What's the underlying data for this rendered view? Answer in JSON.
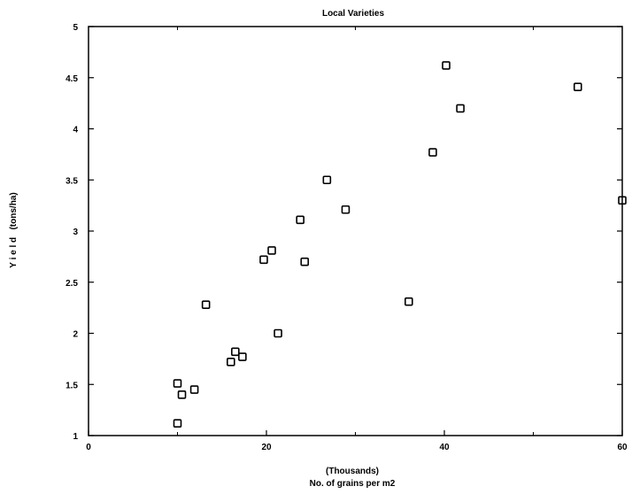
{
  "chart_data": {
    "type": "scatter",
    "title": "Local Varieties",
    "xlabel": "No. of grains per m2",
    "xlabel_unit": "(Thousands)",
    "ylabel": "Y i e l d   (tons/ha)",
    "xlim": [
      0,
      60
    ],
    "ylim": [
      1,
      5
    ],
    "xticks": [
      "0",
      "20",
      "40",
      "60"
    ],
    "yticks": [
      "1",
      "1.5",
      "2",
      "2.5",
      "3",
      "3.5",
      "4",
      "4.5",
      "5"
    ],
    "grid": false,
    "marker": "open-square",
    "series": [
      {
        "points": [
          {
            "x": 10.0,
            "y": 1.51
          },
          {
            "x": 10.0,
            "y": 1.12
          },
          {
            "x": 10.5,
            "y": 1.4
          },
          {
            "x": 11.9,
            "y": 1.45
          },
          {
            "x": 13.2,
            "y": 2.28
          },
          {
            "x": 16.0,
            "y": 1.72
          },
          {
            "x": 16.5,
            "y": 1.82
          },
          {
            "x": 17.3,
            "y": 1.77
          },
          {
            "x": 19.7,
            "y": 2.72
          },
          {
            "x": 20.6,
            "y": 2.81
          },
          {
            "x": 21.3,
            "y": 2.0
          },
          {
            "x": 23.8,
            "y": 3.11
          },
          {
            "x": 24.3,
            "y": 2.7
          },
          {
            "x": 26.8,
            "y": 3.5
          },
          {
            "x": 28.9,
            "y": 3.21
          },
          {
            "x": 36.0,
            "y": 2.31
          },
          {
            "x": 38.7,
            "y": 3.77
          },
          {
            "x": 40.2,
            "y": 4.62
          },
          {
            "x": 41.8,
            "y": 4.2
          },
          {
            "x": 55.0,
            "y": 4.41
          },
          {
            "x": 60.0,
            "y": 3.3
          }
        ]
      }
    ]
  }
}
